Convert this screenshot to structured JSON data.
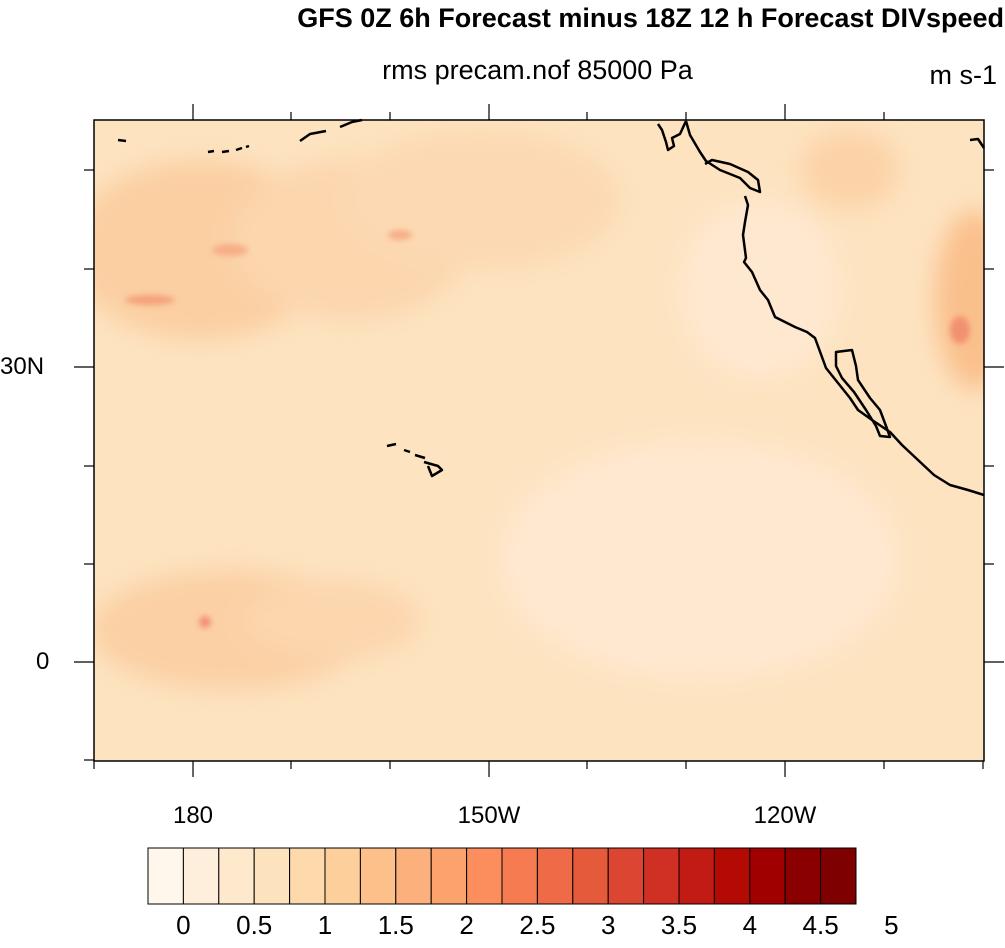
{
  "header": {
    "title": "GFS 0Z 6h Forecast minus 18Z 12 h Forecast DIVspeed",
    "subtitle": "rms precam.nof 85000 Pa",
    "units": "m s-1"
  },
  "axes": {
    "lat_labels": [
      "30N",
      "0"
    ],
    "lon_labels": [
      "180",
      "150W",
      "120W"
    ]
  },
  "colorbar": {
    "labels": [
      "0",
      "0.5",
      "1",
      "1.5",
      "2",
      "2.5",
      "3",
      "3.5",
      "4",
      "4.5",
      "5"
    ],
    "colors": [
      "#fff7ec",
      "#feefdc",
      "#fee9cc",
      "#fde3bd",
      "#fdd9ac",
      "#fdcf9a",
      "#fdc08a",
      "#fcb07b",
      "#fca26d",
      "#fb8e5c",
      "#f67b51",
      "#ef6a46",
      "#e65a3c",
      "#db4531",
      "#cf3023",
      "#c21b13",
      "#b30b03",
      "#a10000",
      "#8a0000",
      "#7f0000"
    ]
  },
  "map": {
    "background_color": "#fde3c0",
    "coast_color": "#000000"
  }
}
